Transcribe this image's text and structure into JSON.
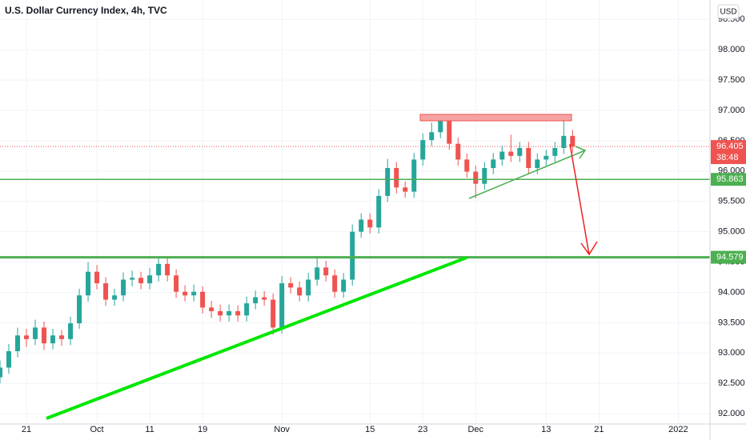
{
  "chart_data": {
    "type": "candlestick",
    "title": "U.S. Dollar Currency Index, 4h, TVC",
    "currency": "USD",
    "x": [
      -2,
      -1,
      0,
      1,
      2,
      3,
      4,
      5,
      6,
      7,
      8,
      9,
      10,
      11,
      12,
      13,
      14,
      15,
      16,
      17,
      18,
      19,
      20,
      21,
      22,
      23,
      24,
      25,
      26,
      27,
      28,
      29,
      30,
      31,
      32,
      33,
      34,
      35,
      36,
      37,
      38,
      39,
      40,
      41,
      42,
      43,
      44,
      45,
      46,
      47,
      48,
      49,
      50,
      51,
      52,
      53,
      54,
      55,
      56,
      57,
      58,
      59,
      60,
      61,
      62,
      63
    ],
    "ohlc": [
      [
        92.6,
        92.88,
        92.5,
        92.76
      ],
      [
        92.76,
        93.15,
        92.66,
        93.03
      ],
      [
        93.03,
        93.42,
        92.93,
        93.29
      ],
      [
        93.29,
        93.4,
        93.1,
        93.23
      ],
      [
        93.23,
        93.55,
        93.13,
        93.42
      ],
      [
        93.42,
        93.52,
        93.05,
        93.16
      ],
      [
        93.16,
        93.4,
        93.06,
        93.29
      ],
      [
        93.29,
        93.38,
        93.12,
        93.23
      ],
      [
        93.23,
        93.6,
        93.13,
        93.49
      ],
      [
        93.49,
        94.06,
        93.4,
        93.95
      ],
      [
        93.95,
        94.5,
        93.85,
        94.34
      ],
      [
        94.34,
        94.45,
        94.05,
        94.15
      ],
      [
        94.15,
        94.25,
        93.78,
        93.88
      ],
      [
        93.88,
        94.06,
        93.78,
        93.95
      ],
      [
        93.95,
        94.33,
        93.85,
        94.21
      ],
      [
        94.21,
        94.36,
        94.1,
        94.24
      ],
      [
        94.24,
        94.34,
        94.05,
        94.15
      ],
      [
        94.15,
        94.4,
        94.05,
        94.28
      ],
      [
        94.28,
        94.56,
        94.18,
        94.47
      ],
      [
        94.47,
        94.57,
        94.18,
        94.28
      ],
      [
        94.28,
        94.38,
        93.91,
        94.01
      ],
      [
        94.01,
        94.12,
        93.85,
        93.95
      ],
      [
        93.95,
        94.13,
        93.85,
        94.01
      ],
      [
        94.01,
        94.1,
        93.65,
        93.75
      ],
      [
        93.75,
        93.86,
        93.58,
        93.69
      ],
      [
        93.69,
        93.8,
        93.52,
        93.62
      ],
      [
        93.62,
        93.8,
        93.52,
        93.69
      ],
      [
        93.69,
        93.79,
        93.52,
        93.62
      ],
      [
        93.62,
        93.93,
        93.52,
        93.82
      ],
      [
        93.82,
        94.03,
        93.72,
        93.92
      ],
      [
        93.92,
        94.02,
        93.78,
        93.88
      ],
      [
        93.88,
        93.98,
        93.3,
        93.42
      ],
      [
        93.42,
        94.27,
        93.32,
        94.15
      ],
      [
        94.15,
        94.25,
        93.98,
        94.08
      ],
      [
        94.08,
        94.18,
        93.85,
        93.95
      ],
      [
        93.95,
        94.32,
        93.85,
        94.21
      ],
      [
        94.21,
        94.6,
        94.11,
        94.41
      ],
      [
        94.41,
        94.52,
        94.18,
        94.28
      ],
      [
        94.28,
        94.38,
        93.91,
        94.01
      ],
      [
        94.01,
        94.32,
        93.91,
        94.21
      ],
      [
        94.21,
        95.12,
        94.11,
        95.0
      ],
      [
        95.0,
        95.3,
        94.9,
        95.2
      ],
      [
        95.2,
        95.3,
        94.97,
        95.07
      ],
      [
        95.07,
        95.7,
        94.97,
        95.59
      ],
      [
        95.59,
        96.2,
        95.49,
        96.05
      ],
      [
        96.05,
        96.15,
        95.63,
        95.73
      ],
      [
        95.73,
        95.83,
        95.56,
        95.66
      ],
      [
        95.66,
        96.3,
        95.56,
        96.19
      ],
      [
        96.19,
        96.62,
        96.09,
        96.51
      ],
      [
        96.51,
        96.8,
        96.41,
        96.64
      ],
      [
        96.64,
        96.94,
        96.54,
        96.84
      ],
      [
        96.84,
        96.94,
        96.35,
        96.45
      ],
      [
        96.45,
        96.55,
        96.09,
        96.19
      ],
      [
        96.19,
        96.29,
        95.89,
        95.99
      ],
      [
        95.99,
        96.09,
        95.55,
        95.79
      ],
      [
        95.79,
        96.15,
        95.69,
        96.05
      ],
      [
        96.05,
        96.3,
        95.95,
        96.19
      ],
      [
        96.19,
        96.42,
        96.09,
        96.32
      ],
      [
        96.32,
        96.6,
        96.15,
        96.25
      ],
      [
        96.25,
        96.48,
        96.15,
        96.38
      ],
      [
        96.38,
        96.48,
        95.95,
        96.05
      ],
      [
        96.05,
        96.29,
        95.95,
        96.19
      ],
      [
        96.19,
        96.35,
        96.09,
        96.25
      ],
      [
        96.25,
        96.48,
        96.15,
        96.38
      ],
      [
        96.38,
        96.9,
        96.28,
        96.58
      ],
      [
        96.58,
        96.68,
        96.3,
        96.405
      ]
    ],
    "up_color": "#26a69a",
    "down_color": "#ef5350",
    "countdown": "38:48",
    "levels": [
      95.863,
      94.579
    ],
    "level_color": "#4caf50",
    "xlim": [
      -2,
      78.6
    ],
    "ylim": [
      91.83,
      98.82
    ],
    "xticks": [
      {
        "value": 1,
        "label": "21"
      },
      {
        "value": 9,
        "label": "Oct"
      },
      {
        "value": 15,
        "label": "11"
      },
      {
        "value": 21,
        "label": "19"
      },
      {
        "value": 30,
        "label": "Nov"
      },
      {
        "value": 40,
        "label": "15"
      },
      {
        "value": 46,
        "label": "23"
      },
      {
        "value": 52,
        "label": "Dec"
      },
      {
        "value": 60,
        "label": "13"
      },
      {
        "value": 66,
        "label": "21"
      },
      {
        "value": 75,
        "label": "2022"
      }
    ],
    "yticks": [
      {
        "value": 92,
        "label": "92.000"
      },
      {
        "value": 92.5,
        "label": "92.500"
      },
      {
        "value": 93,
        "label": "93.000"
      },
      {
        "value": 93.5,
        "label": "93.500"
      },
      {
        "value": 94,
        "label": "94.000"
      },
      {
        "value": 94.5,
        "label": "94.500"
      },
      {
        "value": 95,
        "label": "95.000"
      },
      {
        "value": 95.5,
        "label": "95.500"
      },
      {
        "value": 96,
        "label": "96.000"
      },
      {
        "value": 96.5,
        "label": "96.500"
      },
      {
        "value": 97,
        "label": "97.000"
      },
      {
        "value": 97.5,
        "label": "97.500"
      },
      {
        "value": 98,
        "label": "98.000"
      },
      {
        "value": 98.5,
        "label": "98.500"
      }
    ],
    "grid": true
  }
}
